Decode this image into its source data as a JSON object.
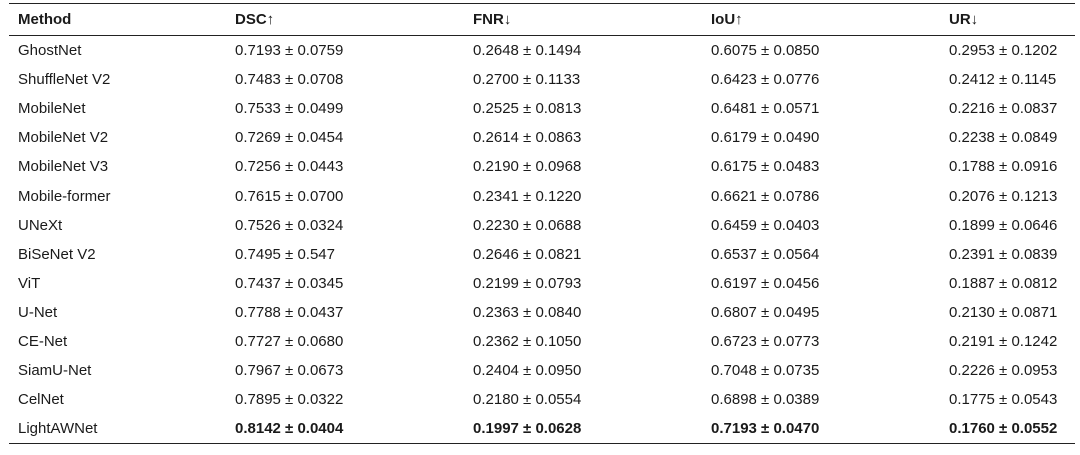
{
  "table": {
    "headers": [
      "Method",
      "DSC↑",
      "FNR↓",
      "IoU↑",
      "UR↓"
    ],
    "rows": [
      [
        "GhostNet",
        "0.7193 ± 0.0759",
        "0.2648 ± 0.1494",
        "0.6075 ± 0.0850",
        "0.2953 ± 0.1202"
      ],
      [
        "ShuffleNet V2",
        "0.7483 ± 0.0708",
        "0.2700 ± 0.1133",
        "0.6423 ± 0.0776",
        "0.2412 ± 0.1145"
      ],
      [
        "MobileNet",
        "0.7533 ± 0.0499",
        "0.2525 ± 0.0813",
        "0.6481 ± 0.0571",
        "0.2216 ± 0.0837"
      ],
      [
        "MobileNet V2",
        "0.7269 ± 0.0454",
        "0.2614 ± 0.0863",
        "0.6179 ± 0.0490",
        "0.2238 ± 0.0849"
      ],
      [
        "MobileNet V3",
        "0.7256 ± 0.0443",
        "0.2190 ± 0.0968",
        "0.6175 ± 0.0483",
        "0.1788 ± 0.0916"
      ],
      [
        "Mobile-former",
        "0.7615 ± 0.0700",
        "0.2341 ± 0.1220",
        "0.6621 ± 0.0786",
        "0.2076 ± 0.1213"
      ],
      [
        "UNeXt",
        "0.7526 ± 0.0324",
        "0.2230 ± 0.0688",
        "0.6459 ± 0.0403",
        "0.1899 ± 0.0646"
      ],
      [
        "BiSeNet V2",
        "0.7495 ± 0.547",
        "0.2646 ± 0.0821",
        "0.6537 ± 0.0564",
        "0.2391 ± 0.0839"
      ],
      [
        "ViT",
        "0.7437 ± 0.0345",
        "0.2199 ± 0.0793",
        "0.6197 ± 0.0456",
        "0.1887 ± 0.0812"
      ],
      [
        "U-Net",
        "0.7788 ± 0.0437",
        "0.2363 ± 0.0840",
        "0.6807 ± 0.0495",
        "0.2130 ± 0.0871"
      ],
      [
        "CE-Net",
        "0.7727 ± 0.0680",
        "0.2362 ± 0.1050",
        "0.6723 ± 0.0773",
        "0.2191 ± 0.1242"
      ],
      [
        "SiamU-Net",
        "0.7967 ± 0.0673",
        "0.2404 ± 0.0950",
        "0.7048 ± 0.0735",
        "0.2226 ± 0.0953"
      ],
      [
        "CelNet",
        "0.7895 ± 0.0322",
        "0.2180 ± 0.0554",
        "0.6898 ± 0.0389",
        "0.1775 ± 0.0543"
      ],
      [
        "LightAWNet",
        "0.8142 ± 0.0404",
        "0.1997 ± 0.0628",
        "0.7193 ± 0.0470",
        "0.1760 ± 0.0552"
      ]
    ],
    "bold_row": "LightAWNet"
  }
}
